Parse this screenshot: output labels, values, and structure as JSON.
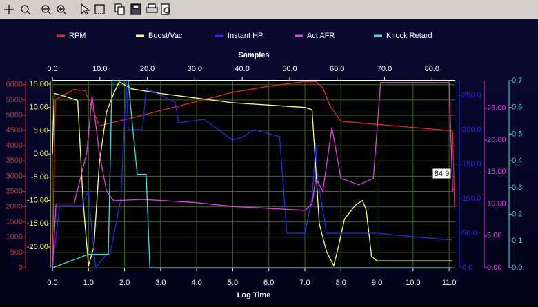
{
  "chart_data": {
    "type": "line",
    "title": "Samples",
    "xlabel": "Log Time",
    "xlim": [
      0,
      11.17
    ],
    "xticks": [
      {
        "value": 0,
        "label": "0.0"
      },
      {
        "value": 1,
        "label": "1.0"
      },
      {
        "value": 2,
        "label": "2.0"
      },
      {
        "value": 3,
        "label": "3.0"
      },
      {
        "value": 4,
        "label": "4.0"
      },
      {
        "value": 5,
        "label": "5.0"
      },
      {
        "value": 6,
        "label": "6.0"
      },
      {
        "value": 7,
        "label": "7.0"
      },
      {
        "value": 8,
        "label": "8.0"
      },
      {
        "value": 9,
        "label": "9.0"
      },
      {
        "value": 10,
        "label": "10.0"
      },
      {
        "value": 11,
        "label": "11.0"
      }
    ],
    "x2lim": [
      0,
      84.9
    ],
    "x2ticks": [
      {
        "value": 0,
        "label": "0.0"
      },
      {
        "value": 10,
        "label": "10.0"
      },
      {
        "value": 20,
        "label": "20.0"
      },
      {
        "value": 30,
        "label": "30.0"
      },
      {
        "value": 40,
        "label": "40.0"
      },
      {
        "value": 50,
        "label": "50.0"
      },
      {
        "value": 60,
        "label": "60.0"
      },
      {
        "value": 70,
        "label": "70.0"
      },
      {
        "value": 80,
        "label": "80.0"
      }
    ],
    "annotation": "84.9",
    "grid": true,
    "series": [
      {
        "name": "RPM",
        "color": "#e02828",
        "ylim": [
          0,
          6130
        ],
        "yticks": [
          0,
          500,
          1000,
          1500,
          2000,
          2500,
          3000,
          3500,
          4000,
          4500,
          5000,
          5500,
          6000
        ],
        "x": [
          0,
          0.08,
          0.3,
          0.6,
          0.9,
          1.05,
          1.3,
          2,
          3,
          4,
          5,
          6,
          7,
          7.3,
          7.5,
          7.7,
          8,
          9,
          10,
          11,
          11.1,
          11.15
        ],
        "values": [
          0,
          5500,
          5650,
          5850,
          5800,
          5400,
          4650,
          4850,
          5150,
          5450,
          5750,
          5950,
          6100,
          6100,
          5900,
          5300,
          4800,
          4700,
          4600,
          4500,
          4450,
          2000
        ]
      },
      {
        "name": "Boost/Vac",
        "color": "#ffff80",
        "ylim": [
          -24.45,
          15.74
        ],
        "yticks": [
          {
            "value": -20,
            "label": "-20.00"
          },
          {
            "value": -15,
            "label": "-15.00"
          },
          {
            "value": -10,
            "label": "-10.00"
          },
          {
            "value": -5,
            "label": "-5.00"
          },
          {
            "value": 0,
            "label": "0.00"
          },
          {
            "value": 5,
            "label": "5.00"
          },
          {
            "value": 10,
            "label": "10.00"
          },
          {
            "value": 15,
            "label": "15.00"
          }
        ],
        "x": [
          0,
          0.05,
          0.3,
          0.7,
          0.85,
          1.0,
          1.15,
          1.3,
          1.5,
          1.7,
          1.85,
          2.2,
          3,
          4,
          5,
          6,
          7,
          7.2,
          7.4,
          7.6,
          7.8,
          7.9,
          8.1,
          8.4,
          8.6,
          8.7,
          8.85,
          9.0,
          10,
          11.1
        ],
        "values": [
          0,
          13,
          12.5,
          11.5,
          -10,
          -24,
          -20,
          -2,
          9,
          13,
          15.5,
          14,
          13,
          12,
          11,
          10.5,
          10,
          9.5,
          -15,
          -21,
          -24,
          -21,
          -14,
          -11,
          -10,
          -12,
          -22,
          -23,
          -23,
          -23
        ]
      },
      {
        "name": "Instant HP",
        "color": "#2828e8",
        "ylim": [
          0,
          271
        ],
        "yticks": [
          {
            "value": 0,
            "label": "0.0"
          },
          {
            "value": 50,
            "label": "50.0"
          },
          {
            "value": 100,
            "label": "100.0"
          },
          {
            "value": 150,
            "label": "150.0"
          },
          {
            "value": 200,
            "label": "200.0"
          },
          {
            "value": 250,
            "label": "250.0"
          }
        ],
        "x": [
          0,
          0.2,
          0.8,
          1.0,
          1.1,
          1.2,
          1.5,
          1.6,
          1.9,
          1.95,
          2.05,
          2.1,
          2.5,
          2.6,
          3.0,
          3.4,
          3.5,
          4.2,
          4.6,
          5.0,
          5.3,
          5.6,
          6.3,
          6.5,
          7.0,
          7.2,
          7.3,
          7.35,
          7.6,
          9.0,
          10,
          11.1
        ],
        "values": [
          0,
          90,
          90,
          110,
          50,
          0,
          20,
          20,
          100,
          160,
          270,
          200,
          200,
          260,
          250,
          240,
          210,
          215,
          200,
          185,
          190,
          200,
          190,
          50,
          50,
          100,
          180,
          130,
          50,
          50,
          45,
          40
        ]
      },
      {
        "name": "Act AFR",
        "color": "#e040e0",
        "ylim": [
          0,
          29.3
        ],
        "yticks": [
          {
            "value": 0,
            "label": "0.00"
          },
          {
            "value": 5,
            "label": "5.00"
          },
          {
            "value": 10,
            "label": "10.00"
          },
          {
            "value": 15,
            "label": "15.00"
          },
          {
            "value": 20,
            "label": "20.00"
          },
          {
            "value": 25,
            "label": "25.00"
          }
        ],
        "x": [
          0,
          0.1,
          0.6,
          0.95,
          1.1,
          1.3,
          1.5,
          1.7,
          2.5,
          4,
          5,
          6,
          7,
          7.2,
          7.3,
          7.5,
          7.75,
          8,
          8.5,
          8.9,
          9.1,
          11,
          11.1
        ],
        "values": [
          0,
          10,
          10,
          18,
          27,
          18,
          12,
          10.5,
          10.7,
          10.2,
          9.6,
          9.3,
          9,
          10,
          14,
          12,
          22,
          14,
          13,
          14,
          29,
          29,
          12
        ]
      },
      {
        "name": "Knock Retard",
        "color": "#40e0e0",
        "ylim": [
          0,
          0.7
        ],
        "yticks": [
          {
            "value": 0,
            "label": "0.0"
          },
          0.1,
          0.2,
          0.3,
          0.4,
          0.5,
          0.6,
          0.7
        ],
        "x": [
          0,
          1.0,
          1.55,
          1.65,
          2.1,
          2.35,
          2.6,
          2.7,
          11.1
        ],
        "values": [
          0,
          0.05,
          0.05,
          0.7,
          0.7,
          0.35,
          0.35,
          0,
          0
        ]
      }
    ]
  }
}
